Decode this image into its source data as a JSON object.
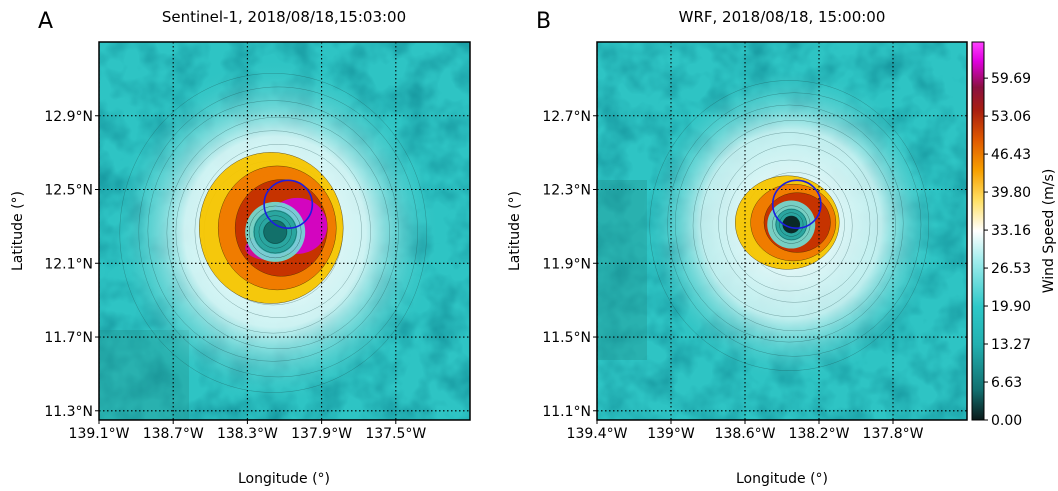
{
  "colors": {
    "background": "#2ec4c4",
    "light": "#e8fbfb",
    "ring_yellow": "#f7c600",
    "ring_orange": "#f07800",
    "ring_red": "#c43000",
    "ring_magenta": "#d400d4",
    "eye": "#12706a",
    "circle": "#1d1de0",
    "colormap": [
      "#0a1a1a",
      "#127070",
      "#22b0b0",
      "#2ec8c8",
      "#7fe6e6",
      "#ffffff",
      "#ffe066",
      "#f7a000",
      "#e05a00",
      "#a81e10",
      "#8a1040",
      "#e000e0",
      "#ff40ff"
    ]
  },
  "chart_data": [
    {
      "type": "heatmap",
      "panel_label": "A",
      "title": "Sentinel-1, 2018/08/18,15:03:00",
      "xlabel": "Longitude (°)",
      "ylabel": "Latitude (°)",
      "xlim": [
        -139.1,
        -137.1
      ],
      "ylim": [
        11.25,
        13.3
      ],
      "x_ticks": [
        -139.1,
        -138.7,
        -138.3,
        -137.9,
        -137.5
      ],
      "x_tick_labels": [
        "139.1°W",
        "138.7°W",
        "138.3°W",
        "137.9°W",
        "137.5°W"
      ],
      "y_ticks": [
        11.3,
        11.7,
        12.1,
        12.5,
        12.9
      ],
      "y_tick_labels": [
        "11.3°N",
        "11.7°N",
        "12.1°N",
        "12.5°N",
        "12.9°N"
      ],
      "grid": true,
      "storm_center": [
        -138.15,
        12.27
      ],
      "circle_center": [
        -138.08,
        12.42
      ],
      "circle_radius_deg": 0.13
    },
    {
      "type": "heatmap",
      "panel_label": "B",
      "title": "WRF, 2018/08/18, 15:00:00",
      "xlabel": "Longitude (°)",
      "ylabel": "Latitude (°)",
      "xlim": [
        -139.4,
        -137.4
      ],
      "ylim": [
        11.05,
        13.1
      ],
      "x_ticks": [
        -139.4,
        -139.0,
        -138.6,
        -138.2,
        -137.8
      ],
      "x_tick_labels": [
        "139.4°W",
        "139°W",
        "138.6°W",
        "138.2°W",
        "137.8°W"
      ],
      "y_ticks": [
        11.1,
        11.5,
        11.9,
        12.3,
        12.7
      ],
      "y_tick_labels": [
        "11.1°N",
        "11.5°N",
        "11.9°N",
        "12.3°N",
        "12.7°N"
      ],
      "grid": true,
      "storm_center": [
        -138.35,
        12.11
      ],
      "circle_center": [
        -138.32,
        12.22
      ],
      "circle_radius_deg": 0.13
    }
  ],
  "colorbar": {
    "label": "Wind Speed (m/s)",
    "range": [
      0,
      66
    ],
    "ticks": [
      0.0,
      6.63,
      13.27,
      19.9,
      26.53,
      33.16,
      39.8,
      46.43,
      53.06,
      59.69
    ],
    "tick_labels": [
      "0.00",
      "6.63",
      "13.27",
      "19.90",
      "26.53",
      "33.16",
      "39.80",
      "46.43",
      "53.06",
      "59.69"
    ]
  }
}
